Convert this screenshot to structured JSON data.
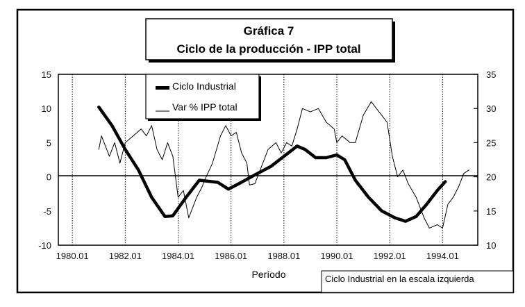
{
  "chart_data": {
    "type": "line",
    "title": "Gráfica 7",
    "subtitle": "Ciclo de la producción - IPP total",
    "xlabel": "Período",
    "note": "Ciclo Industrial en la escala izquierda",
    "x_ticks": [
      "1980.01",
      "1982.01",
      "1984.01",
      "1986.01",
      "1988.01",
      "1990.01",
      "1992.01",
      "1994.01"
    ],
    "x_tick_values": [
      1980,
      1982,
      1984,
      1986,
      1988,
      1990,
      1992,
      1994
    ],
    "xlim": [
      1979.47,
      1995.33
    ],
    "y_left_ticks": [
      "15",
      "10",
      "5",
      "0",
      "-5",
      "-10"
    ],
    "y_left_values": [
      15,
      10,
      5,
      0,
      -5,
      -10
    ],
    "ylim_left": [
      -10,
      15
    ],
    "y_right_ticks": [
      "35",
      "30",
      "25",
      "20",
      "15",
      "10"
    ],
    "y_right_values": [
      35,
      30,
      25,
      20,
      15,
      10
    ],
    "ylim_right": [
      10,
      35
    ],
    "grid": "vertical dotted at x ticks",
    "legend_position": "top-left",
    "series": [
      {
        "name": "Ciclo Industrial",
        "axis": "left",
        "style": "thick",
        "x": [
          1981.0,
          1981.5,
          1982.0,
          1982.5,
          1983.0,
          1983.5,
          1983.8,
          1984.3,
          1984.8,
          1985.5,
          1985.9,
          1986.3,
          1987.0,
          1987.5,
          1988.0,
          1988.5,
          1988.8,
          1989.2,
          1989.6,
          1990.0,
          1990.3,
          1990.7,
          1991.2,
          1991.7,
          1992.2,
          1992.6,
          1993.0,
          1993.4,
          1993.8,
          1994.1
        ],
        "y": [
          10.2,
          7.5,
          4,
          1,
          -3,
          -5.8,
          -5.7,
          -3,
          -0.5,
          -0.8,
          -1.8,
          -1,
          0.5,
          1.5,
          3,
          4.5,
          4,
          2.8,
          2.8,
          3.2,
          2.5,
          -0.5,
          -3,
          -5,
          -6,
          -6.5,
          -5.8,
          -4,
          -2,
          -0.7
        ]
      },
      {
        "name": "Var % IPP total",
        "axis": "right",
        "style": "thin",
        "x": [
          1981.0,
          1981.1,
          1981.4,
          1981.6,
          1981.8,
          1982.0,
          1982.3,
          1982.6,
          1982.8,
          1983.0,
          1983.2,
          1983.4,
          1983.6,
          1983.8,
          1984.0,
          1984.2,
          1984.4,
          1984.7,
          1984.9,
          1985.0,
          1985.3,
          1985.6,
          1985.8,
          1986.0,
          1986.2,
          1986.4,
          1986.6,
          1986.7,
          1986.9,
          1987.1,
          1987.4,
          1987.7,
          1987.9,
          1988.1,
          1988.3,
          1988.5,
          1988.7,
          1989.0,
          1989.3,
          1989.6,
          1989.9,
          1990.0,
          1990.2,
          1990.5,
          1990.7,
          1991.0,
          1991.3,
          1991.6,
          1991.9,
          1992.1,
          1992.3,
          1992.5,
          1992.7,
          1993.0,
          1993.3,
          1993.5,
          1993.8,
          1994.0,
          1994.2,
          1994.4,
          1994.6,
          1994.8,
          1995.0
        ],
        "y": [
          24,
          26,
          23,
          25,
          22,
          25,
          26,
          27,
          26,
          27.5,
          24,
          22.5,
          25,
          23,
          17,
          18,
          14,
          17,
          18.5,
          19.5,
          22,
          26,
          27.5,
          26,
          26.5,
          23.5,
          22,
          18.8,
          19,
          21,
          24,
          25,
          23.5,
          25,
          24.5,
          27,
          30,
          29.5,
          30,
          28,
          27,
          25,
          26,
          25,
          25,
          29,
          31,
          29.5,
          28,
          23,
          20,
          21,
          19,
          17,
          14,
          12.5,
          13,
          12.5,
          16,
          17,
          18.5,
          20.5,
          21
        ]
      }
    ]
  }
}
